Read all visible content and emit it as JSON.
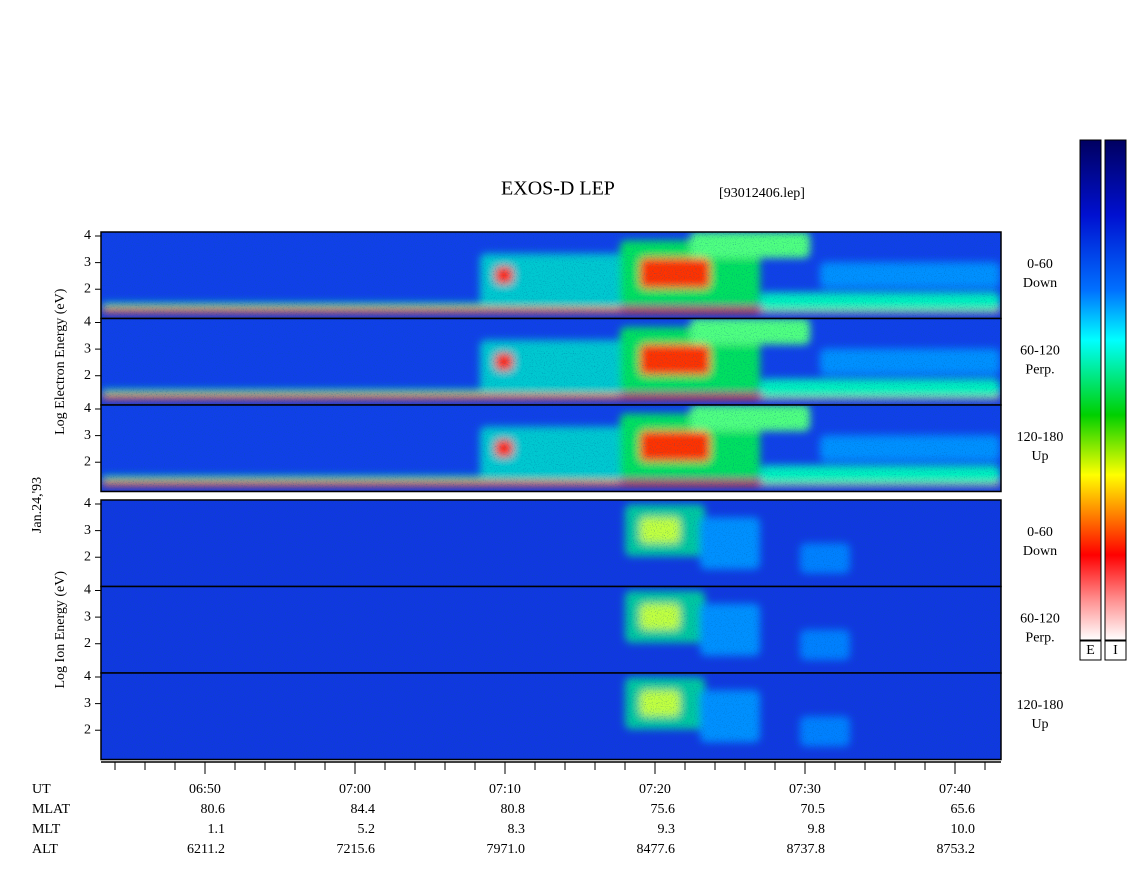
{
  "chart_data": {
    "type": "spectrogram",
    "title": "EXOS-D LEP",
    "file_label": "[93012406.lep]",
    "date_label": "Jan.24,'93",
    "groups": [
      {
        "ylabel": "Log Electron Energy (eV)",
        "panels": [
          {
            "label_lines": [
              "0-60",
              "Down"
            ],
            "ylim": [
              0.9,
              4.15
            ],
            "yticks": [
              2,
              3,
              4
            ]
          },
          {
            "label_lines": [
              "60-120",
              "Perp."
            ],
            "ylim": [
              0.9,
              4.15
            ],
            "yticks": [
              2,
              3,
              4
            ]
          },
          {
            "label_lines": [
              "120-180",
              "Up"
            ],
            "ylim": [
              0.9,
              4.15
            ],
            "yticks": [
              2,
              3,
              4
            ]
          }
        ]
      },
      {
        "ylabel": "Log Ion Energy (eV)",
        "panels": [
          {
            "label_lines": [
              "0-60",
              "Down"
            ],
            "ylim": [
              0.9,
              4.15
            ],
            "yticks": [
              2,
              3,
              4
            ]
          },
          {
            "label_lines": [
              "60-120",
              "Perp."
            ],
            "ylim": [
              0.9,
              4.15
            ],
            "yticks": [
              2,
              3,
              4
            ]
          },
          {
            "label_lines": [
              "120-180",
              "Up"
            ],
            "ylim": [
              0.9,
              4.15
            ],
            "yticks": [
              2,
              3,
              4
            ]
          }
        ]
      }
    ],
    "x_label": "UT",
    "categories": [
      "06:50",
      "07:00",
      "07:10",
      "07:20",
      "07:30",
      "07:40"
    ],
    "rows": [
      {
        "name": "MLAT",
        "labels": [
          "80.6",
          "84.4",
          "80.8",
          "75.6",
          "70.5",
          "65.6"
        ]
      },
      {
        "name": "MLT",
        "labels": [
          "1.1",
          "5.2",
          "8.3",
          "9.3",
          "9.8",
          "10.0"
        ]
      },
      {
        "name": "ALT",
        "labels": [
          "6211.2",
          "7215.6",
          "7971.0",
          "8477.6",
          "8737.8",
          "8753.2"
        ]
      }
    ],
    "colorbars": [
      {
        "label": "E"
      },
      {
        "label": "I"
      }
    ]
  }
}
